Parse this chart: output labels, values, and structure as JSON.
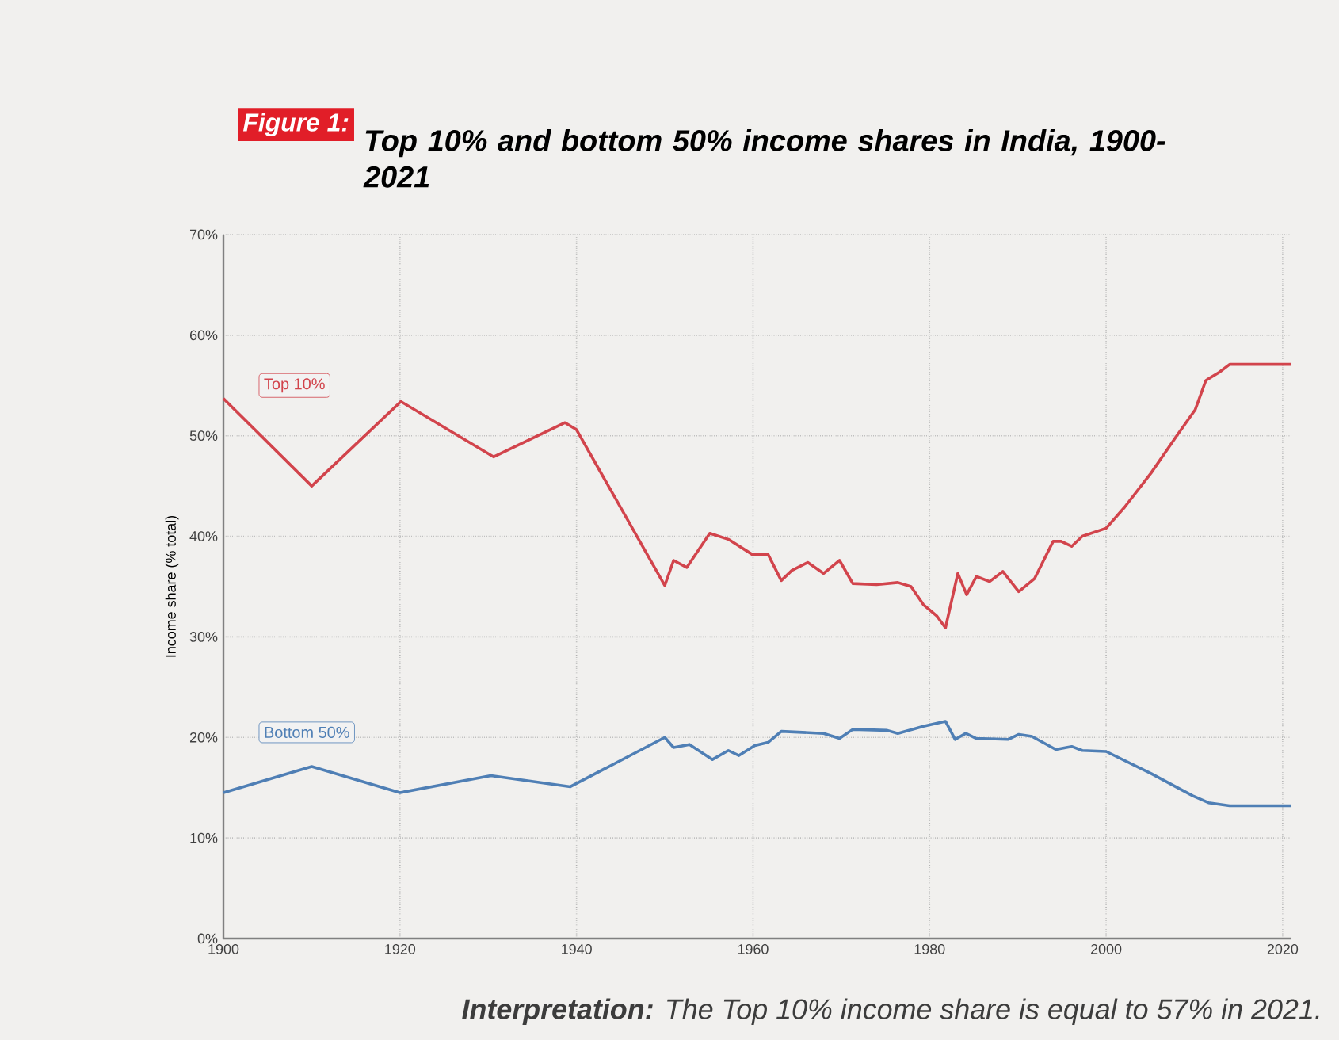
{
  "chart_data": {
    "type": "line",
    "title": "Top 10% and bottom 50% income shares in India, 1900-2021",
    "ylabel": "Income share (% total)",
    "annotations": [
      "Figure 1:",
      "**Interpretation:** The Top 10% income share is equal to 57% in 2021."
    ],
    "xlim": [
      1900,
      2021
    ],
    "ylim": [
      0,
      70
    ],
    "xticks": [
      1900,
      1920,
      1940,
      1960,
      1980,
      2000,
      2020
    ],
    "yticks": [
      {
        "value": 0,
        "label": "0%"
      },
      {
        "value": 10,
        "label": "10%"
      },
      {
        "value": 20,
        "label": "20%"
      },
      {
        "value": 30,
        "label": "30%"
      },
      {
        "value": 40,
        "label": "40%"
      },
      {
        "value": 50,
        "label": "50%"
      },
      {
        "value": 60,
        "label": "60%"
      },
      {
        "value": 70,
        "label": "70%"
      }
    ],
    "grid": true,
    "legend": "left",
    "marker": "none",
    "line_style": "solid",
    "series": [
      {
        "name": "Top 10%",
        "color": "#d2444c",
        "x": [
          1900,
          1910,
          1920.1,
          1930.6,
          1938.7,
          1940,
          1950,
          1951,
          1952.5,
          1955.1,
          1957.2,
          1959.9,
          1961.7,
          1963.2,
          1964.4,
          1966.2,
          1968,
          1969.8,
          1971.3,
          1974,
          1976.4,
          1977.9,
          1979.3,
          1980.8,
          1981.8,
          1983.2,
          1984.2,
          1985.3,
          1986.8,
          1988.3,
          1990.1,
          1991.9,
          1994,
          1994.9,
          1996.1,
          1997.3,
          2000,
          2002.1,
          2005.1,
          2008,
          2010.1,
          2011.3,
          2012.8,
          2014,
          2021
        ],
        "values": [
          53.7,
          45.0,
          53.4,
          47.9,
          51.3,
          50.6,
          35.1,
          37.6,
          36.9,
          40.3,
          39.7,
          38.2,
          38.2,
          35.6,
          36.6,
          37.4,
          36.3,
          37.6,
          35.3,
          35.2,
          35.4,
          35.0,
          33.2,
          32.1,
          30.9,
          36.3,
          34.2,
          36.0,
          35.5,
          36.5,
          34.5,
          35.8,
          39.5,
          39.5,
          39.0,
          40.0,
          40.8,
          42.9,
          46.3,
          50.0,
          52.6,
          55.5,
          56.3,
          57.1,
          57.1
        ]
      },
      {
        "name": "Bottom 50%",
        "color": "#4f7fb5",
        "x": [
          1900,
          1910,
          1920,
          1930.3,
          1939.3,
          1950,
          1951,
          1952.8,
          1955.4,
          1957.2,
          1958.4,
          1960.2,
          1961.7,
          1963.2,
          1968,
          1969.8,
          1971.3,
          1975.2,
          1976.4,
          1979.3,
          1981.8,
          1982.9,
          1984.1,
          1985.3,
          1988.9,
          1990.1,
          1991.6,
          1994.3,
          1996.1,
          1997.3,
          2000,
          2005.1,
          2009.8,
          2011.6,
          2014,
          2021
        ],
        "values": [
          14.5,
          17.1,
          14.5,
          16.2,
          15.1,
          20.0,
          19.0,
          19.3,
          17.8,
          18.7,
          18.2,
          19.2,
          19.5,
          20.6,
          20.4,
          19.9,
          20.8,
          20.7,
          20.4,
          21.1,
          21.6,
          19.8,
          20.4,
          19.9,
          19.8,
          20.3,
          20.1,
          18.8,
          19.1,
          18.7,
          18.6,
          16.4,
          14.2,
          13.5,
          13.2,
          13.2
        ]
      }
    ]
  }
}
